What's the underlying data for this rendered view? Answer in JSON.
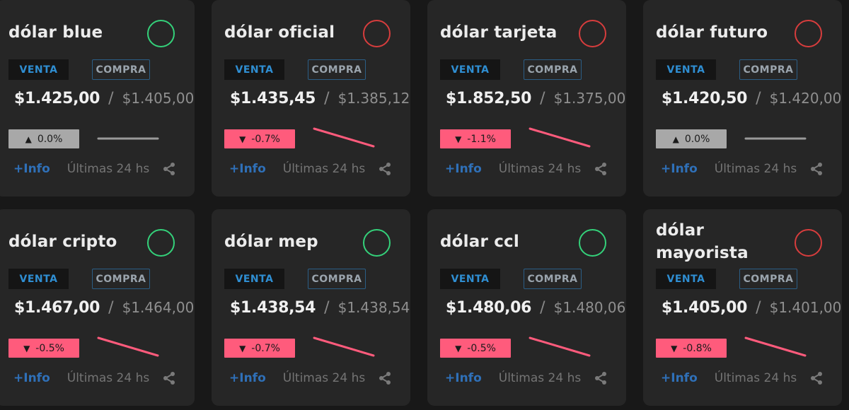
{
  "labels": {
    "venta": "VENTA",
    "compra": "COMPRA",
    "more_info": "+Info",
    "last24": "Últimas 24 hs"
  },
  "colors": {
    "up_circle": "#34d17a",
    "down_circle": "#d73d3d",
    "negative": "#ff5b7c",
    "neutral": "#a8a8a8",
    "info_link": "#2f70b8"
  },
  "cards": [
    {
      "title": "dólar blue",
      "trend": "up",
      "venta": "$1.425,00",
      "compra": "$1.405,00",
      "change": "0.0%",
      "change_dir": "flat",
      "share_icon": "share-icon"
    },
    {
      "title": "dólar oficial",
      "trend": "down",
      "venta": "$1.435,45",
      "compra": "$1.385,12",
      "change": "-0.7%",
      "change_dir": "down",
      "share_icon": "share-icon"
    },
    {
      "title": "dólar tarjeta",
      "trend": "down",
      "venta": "$1.852,50",
      "compra": "$1.375,00",
      "change": "-1.1%",
      "change_dir": "down",
      "share_icon": "share-icon"
    },
    {
      "title": "dólar futuro",
      "trend": "down",
      "venta": "$1.420,50",
      "compra": "$1.420,00",
      "change": "0.0%",
      "change_dir": "flat",
      "share_icon": "share-icon"
    },
    {
      "title": "dólar cripto",
      "trend": "up",
      "venta": "$1.467,00",
      "compra": "$1.464,00",
      "change": "-0.5%",
      "change_dir": "down",
      "share_icon": "share-icon"
    },
    {
      "title": "dólar mep",
      "trend": "up",
      "venta": "$1.438,54",
      "compra": "$1.438,54",
      "change": "-0.7%",
      "change_dir": "down",
      "share_icon": "share-icon"
    },
    {
      "title": "dólar ccl",
      "trend": "up",
      "venta": "$1.480,06",
      "compra": "$1.480,06",
      "change": "-0.5%",
      "change_dir": "down",
      "share_icon": "share-icon"
    },
    {
      "title": "dólar mayorista",
      "trend": "down",
      "venta": "$1.405,00",
      "compra": "$1.401,00",
      "change": "-0.8%",
      "change_dir": "down",
      "share_icon": "share-icon"
    }
  ]
}
